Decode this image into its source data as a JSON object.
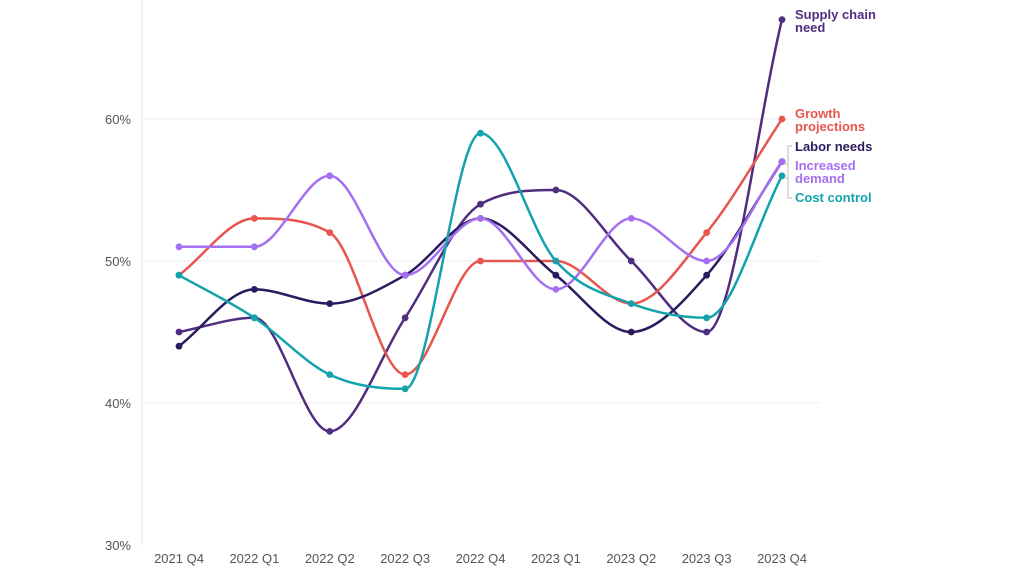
{
  "chart_data": {
    "type": "line",
    "title": "",
    "xlabel": "",
    "ylabel": "",
    "ylim": [
      30,
      68
    ],
    "yticks": [
      30,
      40,
      50,
      60
    ],
    "ytick_labels": [
      "30%",
      "40%",
      "50%",
      "60%"
    ],
    "categories": [
      "2021 Q4",
      "2022 Q1",
      "2022 Q2",
      "2022 Q3",
      "2022 Q4",
      "2023 Q1",
      "2023 Q2",
      "2023 Q3",
      "2023 Q4"
    ],
    "grid": "horizontal",
    "legend_placement": "end-of-lines-right",
    "series": [
      {
        "name": "Supply chain need",
        "label_lines": [
          "Supply chain",
          "need"
        ],
        "color": "#4f2d7f",
        "values": [
          45,
          46,
          38,
          46,
          54,
          55,
          50,
          45,
          67
        ]
      },
      {
        "name": "Growth projections",
        "label_lines": [
          "Growth",
          "projections"
        ],
        "color": "#e8554e",
        "values": [
          49,
          53,
          52,
          42,
          50,
          50,
          47,
          52,
          60
        ]
      },
      {
        "name": "Labor needs",
        "label_lines": [
          "Labor needs"
        ],
        "color": "#2b1b5e",
        "values": [
          44,
          48,
          47,
          49,
          53,
          49,
          45,
          49,
          57
        ]
      },
      {
        "name": "Increased demand",
        "label_lines": [
          "Increased",
          "demand"
        ],
        "color": "#a46ff0",
        "values": [
          51,
          51,
          56,
          49,
          53,
          48,
          53,
          50,
          57
        ]
      },
      {
        "name": "Cost control",
        "label_lines": [
          "Cost control"
        ],
        "color": "#14a3ac",
        "values": [
          49,
          46,
          42,
          41,
          59,
          50,
          47,
          46,
          56
        ]
      }
    ]
  }
}
